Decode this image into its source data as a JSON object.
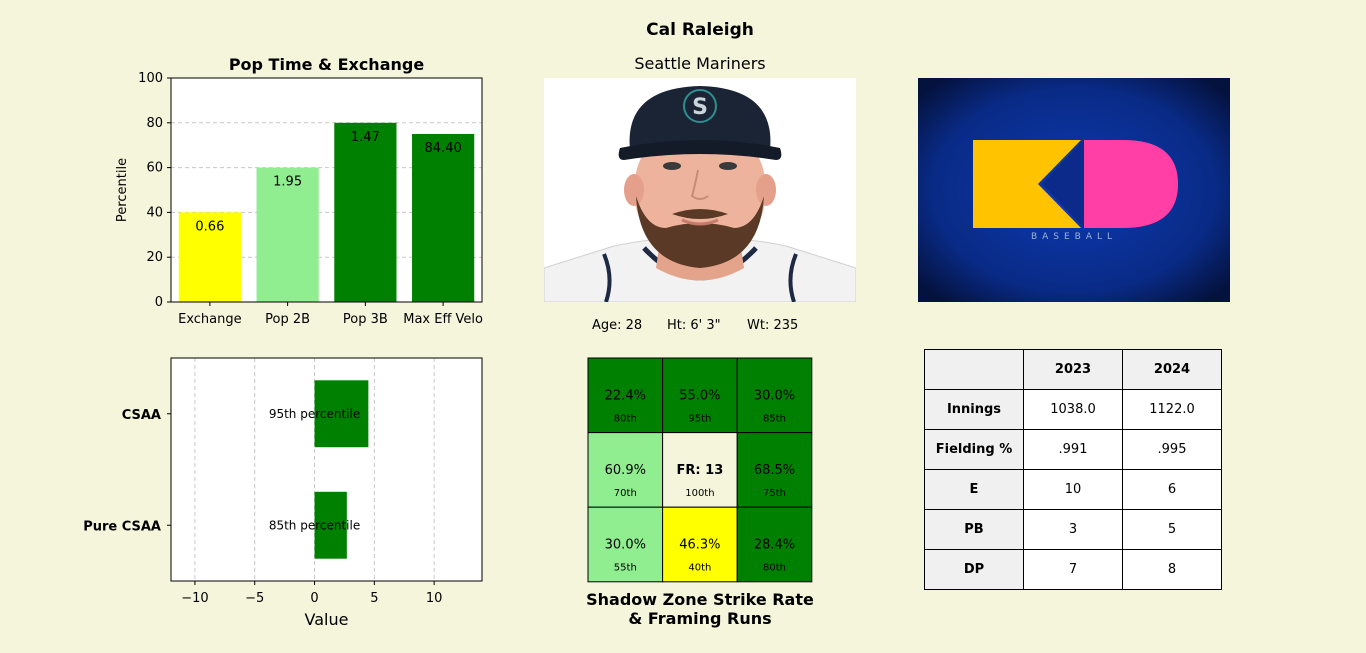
{
  "player": {
    "name": "Cal Raleigh",
    "team": "Seattle Mariners",
    "age": "Age: 28",
    "height": "Ht: 6' 3\"",
    "weight": "Wt: 235"
  },
  "logo": {
    "letters": "KD",
    "subtitle": "BASEBALL",
    "colors": {
      "bg": "#0b2a8a",
      "k": "#ffc300",
      "d": "#ff3fa6"
    }
  },
  "chart_data": [
    {
      "type": "bar",
      "title": "Pop Time & Exchange",
      "categories": [
        "Exchange",
        "Pop 2B",
        "Pop 3B",
        "Max Eff Velo"
      ],
      "values": [
        40,
        60,
        80,
        75
      ],
      "labels": [
        "0.66",
        "1.95",
        "1.47",
        "84.40"
      ],
      "colors": [
        "#ffff00",
        "#90ee90",
        "#008000",
        "#008000"
      ],
      "ylabel": "Percentile",
      "ylim": [
        0,
        100
      ],
      "yticks": [
        "0",
        "20",
        "40",
        "60",
        "80",
        "100"
      ],
      "grid": "y-dashed"
    },
    {
      "type": "bar",
      "orientation": "horizontal",
      "categories": [
        "CSAA",
        "Pure CSAA"
      ],
      "values": [
        4.5,
        2.7
      ],
      "labels": [
        "95th percentile",
        "85th percentile"
      ],
      "colors": [
        "#008000",
        "#008000"
      ],
      "xlabel": "Value",
      "xlim": [
        -12,
        14
      ],
      "xticks": [
        "−10",
        "−5",
        "0",
        "5",
        "10"
      ],
      "grid": "x-dashed"
    }
  ],
  "zone": {
    "title_line1": "Shadow Zone Strike Rate",
    "title_line2": "& Framing Runs",
    "cells": [
      {
        "value": "22.4%",
        "pct": "80th",
        "color": "#008000"
      },
      {
        "value": "55.0%",
        "pct": "95th",
        "color": "#008000"
      },
      {
        "value": "30.0%",
        "pct": "85th",
        "color": "#008000"
      },
      {
        "value": "60.9%",
        "pct": "70th",
        "color": "#90ee90"
      },
      {
        "value": "FR: 13",
        "pct": "100th",
        "color": "#f5f5dc",
        "bold": true
      },
      {
        "value": "68.5%",
        "pct": "75th",
        "color": "#008000"
      },
      {
        "value": "30.0%",
        "pct": "55th",
        "color": "#90ee90"
      },
      {
        "value": "46.3%",
        "pct": "40th",
        "color": "#ffff00"
      },
      {
        "value": "28.4%",
        "pct": "80th",
        "color": "#008000"
      }
    ]
  },
  "stats_table": {
    "columns": [
      "",
      "2023",
      "2024"
    ],
    "rows": [
      {
        "label": "Innings",
        "values": [
          "1038.0",
          "1122.0"
        ]
      },
      {
        "label": "Fielding %",
        "values": [
          ".991",
          ".995"
        ]
      },
      {
        "label": "E",
        "values": [
          "10",
          "6"
        ]
      },
      {
        "label": "PB",
        "values": [
          "3",
          "5"
        ]
      },
      {
        "label": "DP",
        "values": [
          "7",
          "8"
        ]
      }
    ]
  }
}
